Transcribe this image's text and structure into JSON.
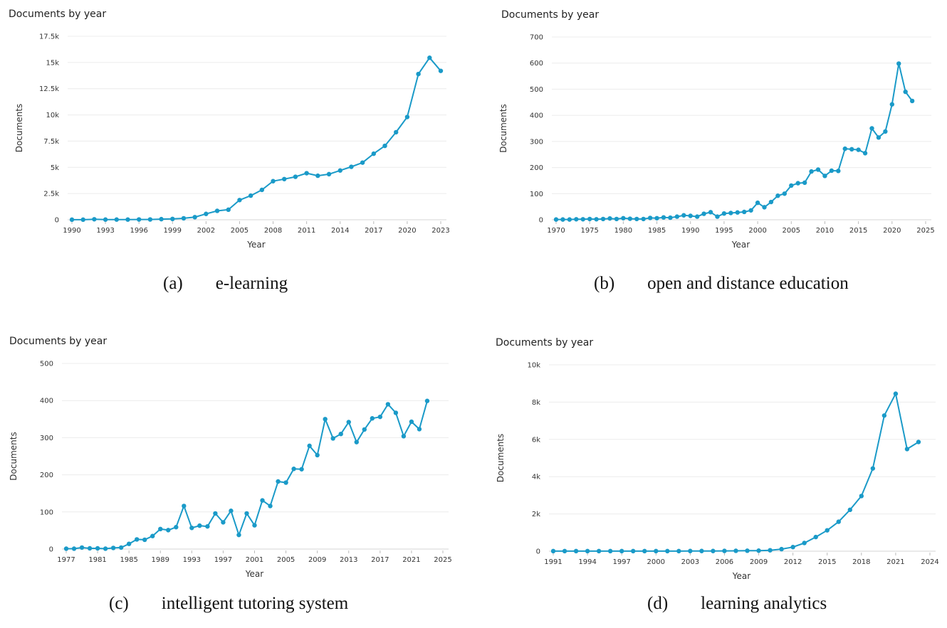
{
  "chart_data": [
    {
      "type": "line",
      "title": "Documents by year",
      "xlabel": "Year",
      "ylabel": "Documents",
      "ylim": [
        0,
        17500
      ],
      "yticks": [
        0,
        2500,
        5000,
        7500,
        10000,
        12500,
        15000,
        17500
      ],
      "yticklabels": [
        "0",
        "2.5k",
        "5k",
        "7.5k",
        "10k",
        "12.5k",
        "15k",
        "17.5k"
      ],
      "xlim": [
        1990,
        2023
      ],
      "xticks": [
        1990,
        1993,
        1996,
        1999,
        2002,
        2005,
        2008,
        2011,
        2014,
        2017,
        2020,
        2023
      ],
      "xticklabels": [
        "1990",
        "1993",
        "1996",
        "1999",
        "2002",
        "2005",
        "2008",
        "2011",
        "2014",
        "2017",
        "2020",
        "2023"
      ],
      "color": "#1a9ac8",
      "caption_label": "(a)",
      "caption_name": "e-learning",
      "x": [
        1990,
        1991,
        1992,
        1993,
        1994,
        1995,
        1996,
        1997,
        1998,
        1999,
        2000,
        2001,
        2002,
        2003,
        2004,
        2005,
        2006,
        2007,
        2008,
        2009,
        2010,
        2011,
        2012,
        2013,
        2014,
        2015,
        2016,
        2017,
        2018,
        2019,
        2020,
        2021,
        2022,
        2023
      ],
      "y": [
        10,
        10,
        50,
        20,
        20,
        20,
        30,
        30,
        60,
        80,
        140,
        250,
        560,
        850,
        960,
        1880,
        2300,
        2850,
        3680,
        3880,
        4100,
        4440,
        4200,
        4350,
        4700,
        5050,
        5450,
        6300,
        7050,
        8350,
        9800,
        13900,
        15450,
        14200
      ]
    },
    {
      "type": "line",
      "title": "Documents by year",
      "xlabel": "Year",
      "ylabel": "Documents",
      "ylim": [
        0,
        700
      ],
      "yticks": [
        0,
        100,
        200,
        300,
        400,
        500,
        600,
        700
      ],
      "yticklabels": [
        "0",
        "100",
        "200",
        "300",
        "400",
        "500",
        "600",
        "700"
      ],
      "xlim": [
        1970,
        2025
      ],
      "xticks": [
        1970,
        1975,
        1980,
        1985,
        1990,
        1995,
        2000,
        2005,
        2010,
        2015,
        2020,
        2025
      ],
      "xticklabels": [
        "1970",
        "1975",
        "1980",
        "1985",
        "1990",
        "1995",
        "2000",
        "2005",
        "2010",
        "2015",
        "2020",
        "2025"
      ],
      "color": "#1a9ac8",
      "caption_label": "(b)",
      "caption_name": "open and distance education",
      "x": [
        1970,
        1971,
        1972,
        1973,
        1974,
        1975,
        1976,
        1977,
        1978,
        1979,
        1980,
        1981,
        1982,
        1983,
        1984,
        1985,
        1986,
        1987,
        1988,
        1989,
        1990,
        1991,
        1992,
        1993,
        1994,
        1995,
        1996,
        1997,
        1998,
        1999,
        2000,
        2001,
        2002,
        2003,
        2004,
        2005,
        2006,
        2007,
        2008,
        2009,
        2010,
        2011,
        2012,
        2013,
        2014,
        2015,
        2016,
        2017,
        2018,
        2019,
        2020,
        2021,
        2022,
        2023
      ],
      "y": [
        1,
        1,
        1,
        2,
        2,
        3,
        2,
        3,
        5,
        3,
        6,
        4,
        3,
        3,
        7,
        6,
        9,
        8,
        12,
        17,
        15,
        12,
        23,
        29,
        12,
        24,
        26,
        28,
        30,
        36,
        65,
        48,
        68,
        92,
        100,
        131,
        140,
        142,
        185,
        192,
        168,
        188,
        187,
        272,
        270,
        268,
        255,
        350,
        315,
        338,
        442,
        598,
        490,
        455
      ]
    },
    {
      "type": "line",
      "title": "Documents by year",
      "xlabel": "Year",
      "ylabel": "Documents",
      "ylim": [
        0,
        500
      ],
      "yticks": [
        0,
        100,
        200,
        300,
        400,
        500
      ],
      "yticklabels": [
        "0",
        "100",
        "200",
        "300",
        "400",
        "500"
      ],
      "xlim": [
        1977,
        2025
      ],
      "xticks": [
        1977,
        1981,
        1985,
        1989,
        1993,
        1997,
        2001,
        2005,
        2009,
        2013,
        2017,
        2021,
        2025
      ],
      "xticklabels": [
        "1977",
        "1981",
        "1985",
        "1989",
        "1993",
        "1997",
        "2001",
        "2005",
        "2009",
        "2013",
        "2017",
        "2021",
        "2025"
      ],
      "color": "#1a9ac8",
      "caption_label": "(c)",
      "caption_name": "intelligent tutoring system",
      "x": [
        1977,
        1978,
        1979,
        1980,
        1981,
        1982,
        1983,
        1984,
        1985,
        1986,
        1987,
        1988,
        1989,
        1990,
        1991,
        1992,
        1993,
        1994,
        1995,
        1996,
        1997,
        1998,
        1999,
        2000,
        2001,
        2002,
        2003,
        2004,
        2005,
        2006,
        2007,
        2008,
        2009,
        2010,
        2011,
        2012,
        2013,
        2014,
        2015,
        2016,
        2017,
        2018,
        2019,
        2020,
        2021,
        2022,
        2023
      ],
      "y": [
        1,
        1,
        4,
        2,
        2,
        1,
        3,
        4,
        14,
        26,
        25,
        35,
        54,
        51,
        59,
        116,
        57,
        63,
        61,
        96,
        72,
        103,
        38,
        96,
        64,
        131,
        116,
        182,
        179,
        216,
        215,
        278,
        253,
        350,
        298,
        310,
        342,
        288,
        322,
        352,
        356,
        390,
        367,
        304,
        343,
        323,
        399
      ]
    },
    {
      "type": "line",
      "title": "Documents by year",
      "xlabel": "Year",
      "ylabel": "Documents",
      "ylim": [
        0,
        10000
      ],
      "yticks": [
        0,
        2000,
        4000,
        6000,
        8000,
        10000
      ],
      "yticklabels": [
        "0",
        "2k",
        "4k",
        "6k",
        "8k",
        "10k"
      ],
      "xlim": [
        1991,
        2024
      ],
      "xticks": [
        1991,
        1994,
        1997,
        2000,
        2003,
        2006,
        2009,
        2012,
        2015,
        2018,
        2021,
        2024
      ],
      "xticklabels": [
        "1991",
        "1994",
        "1997",
        "2000",
        "2003",
        "2006",
        "2009",
        "2012",
        "2015",
        "2018",
        "2021",
        "2024"
      ],
      "color": "#1a9ac8",
      "caption_label": "(d)",
      "caption_name": "learning analytics",
      "x": [
        1991,
        1992,
        1993,
        1994,
        1995,
        1996,
        1997,
        1998,
        1999,
        2000,
        2001,
        2002,
        2003,
        2004,
        2005,
        2006,
        2007,
        2008,
        2009,
        2010,
        2011,
        2012,
        2013,
        2014,
        2015,
        2016,
        2017,
        2018,
        2019,
        2020,
        2021,
        2022,
        2023
      ],
      "y": [
        5,
        5,
        5,
        5,
        5,
        5,
        5,
        5,
        5,
        5,
        5,
        5,
        10,
        10,
        10,
        15,
        20,
        25,
        30,
        50,
        110,
        220,
        440,
        760,
        1120,
        1580,
        2220,
        2960,
        4440,
        7280,
        8450,
        5480,
        5860
      ]
    }
  ]
}
